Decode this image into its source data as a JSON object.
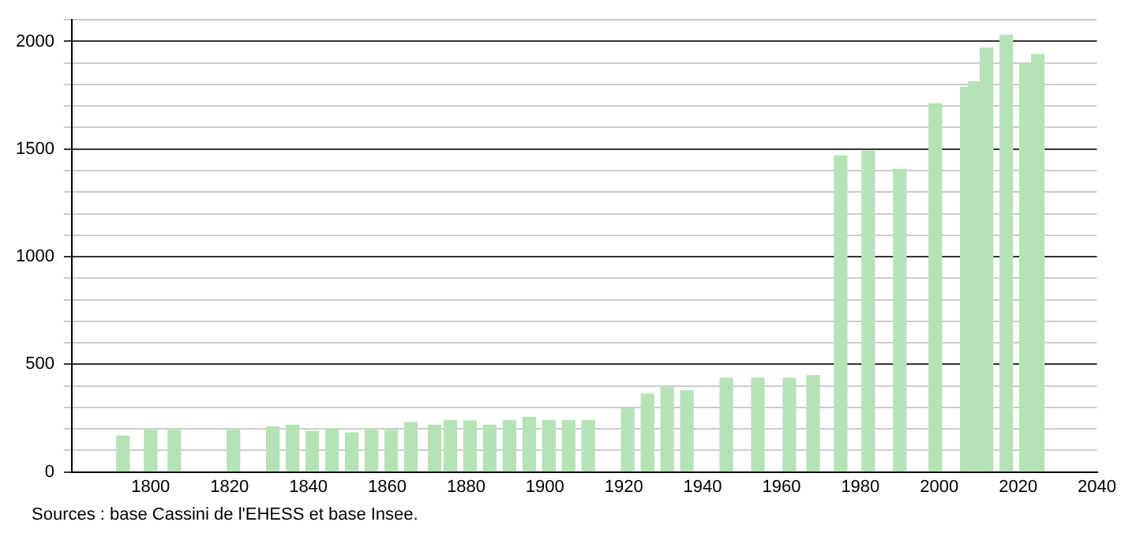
{
  "chart_data": {
    "type": "bar",
    "x": [
      1793,
      1800,
      1806,
      1821,
      1831,
      1836,
      1841,
      1846,
      1851,
      1856,
      1861,
      1866,
      1872,
      1876,
      1881,
      1886,
      1891,
      1896,
      1901,
      1906,
      1911,
      1921,
      1926,
      1931,
      1936,
      1946,
      1954,
      1962,
      1968,
      1975,
      1982,
      1990,
      1999,
      2007,
      2009,
      2012,
      2017,
      2022,
      2025
    ],
    "values": [
      167,
      193,
      193,
      193,
      210,
      217,
      188,
      200,
      181,
      193,
      193,
      230,
      217,
      239,
      237,
      217,
      239,
      254,
      239,
      239,
      239,
      295,
      362,
      394,
      377,
      435,
      435,
      435,
      447,
      1469,
      1490,
      1406,
      1710,
      1787,
      1812,
      1969,
      2029,
      1896,
      1940
    ],
    "color": "#b5e3b5",
    "xlim": [
      1780,
      2040
    ],
    "xticks": [
      1800,
      1820,
      1840,
      1860,
      1880,
      1900,
      1920,
      1940,
      1960,
      1980,
      2000,
      2020,
      2040
    ],
    "ylim": [
      0,
      2100
    ],
    "yticks": [
      0,
      {
        "value": 100,
        "label": null
      },
      {
        "value": 200,
        "label": null
      },
      {
        "value": 300,
        "label": null
      },
      {
        "value": 400,
        "label": null
      },
      500,
      {
        "value": 600,
        "label": null
      },
      {
        "value": 700,
        "label": null
      },
      {
        "value": 800,
        "label": null
      },
      {
        "value": 900,
        "label": null
      },
      1000,
      {
        "value": 1100,
        "label": null
      },
      {
        "value": 1200,
        "label": null
      },
      {
        "value": 1300,
        "label": null
      },
      {
        "value": 1400,
        "label": null
      },
      1500,
      {
        "value": 1600,
        "label": null
      },
      {
        "value": 1700,
        "label": null
      },
      {
        "value": 1800,
        "label": null
      },
      {
        "value": 1900,
        "label": null
      },
      2000,
      {
        "value": 2100,
        "label": null
      }
    ],
    "grid": "y",
    "annotations": [
      "Sources : base Cassini de l'EHESS et base Insee."
    ]
  }
}
